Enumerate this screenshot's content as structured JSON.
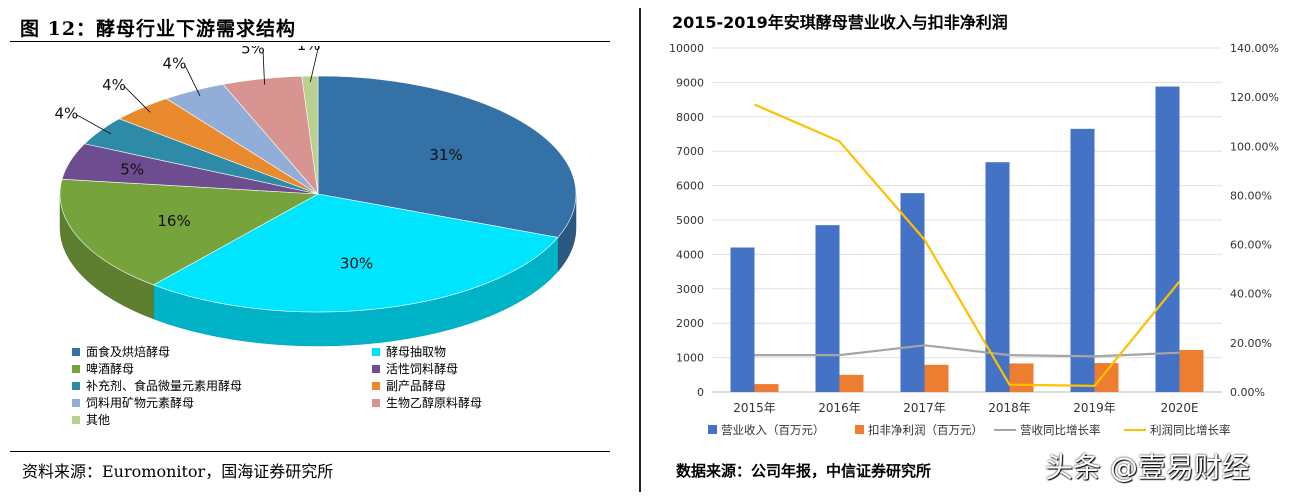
{
  "left": {
    "title": "图 12：酵母行业下游需求结构",
    "source": "资料来源：Euromonitor，国海证券研究所"
  },
  "right": {
    "title": "2015-2019年安琪酵母营业收入与扣非净利润",
    "source": "数据来源：公司年报，中信证券研究所"
  },
  "watermark": "头条 @壹易财经",
  "chart_data": [
    {
      "type": "pie",
      "title": "酵母行业下游需求结构",
      "slices": [
        {
          "label": "面食及烘焙酵母",
          "value": 31,
          "color": "#3471A6",
          "text": "31%"
        },
        {
          "label": "酵母抽取物",
          "value": 30,
          "color": "#00E5FF",
          "text": "30%"
        },
        {
          "label": "啤酒酵母",
          "value": 16,
          "color": "#77A33C",
          "text": "16%"
        },
        {
          "label": "活性饲料酵母",
          "value": 5,
          "color": "#6D4C8F",
          "text": "5%"
        },
        {
          "label": "补充剂、食品微量元素用酵母",
          "value": 4,
          "color": "#2E8BA8",
          "text": "4%"
        },
        {
          "label": "副产品酵母",
          "value": 4,
          "color": "#E98A2E",
          "text": "4%"
        },
        {
          "label": "饲料用矿物元素酵母",
          "value": 4,
          "color": "#92AED8",
          "text": "4%"
        },
        {
          "label": "生物乙醇原料酵母",
          "value": 5,
          "color": "#D79490",
          "text": "5%"
        },
        {
          "label": "其他",
          "value": 1,
          "color": "#B9D08F",
          "text": "1%"
        }
      ]
    },
    {
      "type": "bar",
      "title": "2015-2019年安琪酵母营业收入与扣非净利润",
      "categories": [
        "2015年",
        "2016年",
        "2017年",
        "2018年",
        "2019年",
        "2020E"
      ],
      "series": [
        {
          "name": "营业收入（百万元）",
          "type": "bar",
          "axis": "left",
          "color": "#4472C4",
          "values": [
            4200,
            4850,
            5780,
            6680,
            7650,
            8880
          ]
        },
        {
          "name": "扣非净利润（百万元）",
          "type": "bar",
          "axis": "left",
          "color": "#ED7D31",
          "values": [
            230,
            500,
            790,
            830,
            840,
            1220
          ]
        },
        {
          "name": "营收同比增长率",
          "type": "line",
          "axis": "right",
          "color": "#A5A5A5",
          "values": [
            0.15,
            0.15,
            0.19,
            0.15,
            0.145,
            0.16
          ]
        },
        {
          "name": "利润同比增长率",
          "type": "line",
          "axis": "right",
          "color": "#FFC000",
          "values": [
            1.17,
            1.02,
            0.62,
            0.03,
            0.025,
            0.45
          ]
        }
      ],
      "ylim_left": [
        0,
        10000
      ],
      "yticks_left": [
        "0",
        "1000",
        "2000",
        "3000",
        "4000",
        "5000",
        "6000",
        "7000",
        "8000",
        "9000",
        "10000"
      ],
      "ylim_right": [
        0,
        1.4
      ],
      "yticks_right": [
        "0.00%",
        "20.00%",
        "40.00%",
        "60.00%",
        "80.00%",
        "100.00%",
        "120.00%",
        "140.00%"
      ],
      "grid": true,
      "legend": "bottom"
    }
  ]
}
